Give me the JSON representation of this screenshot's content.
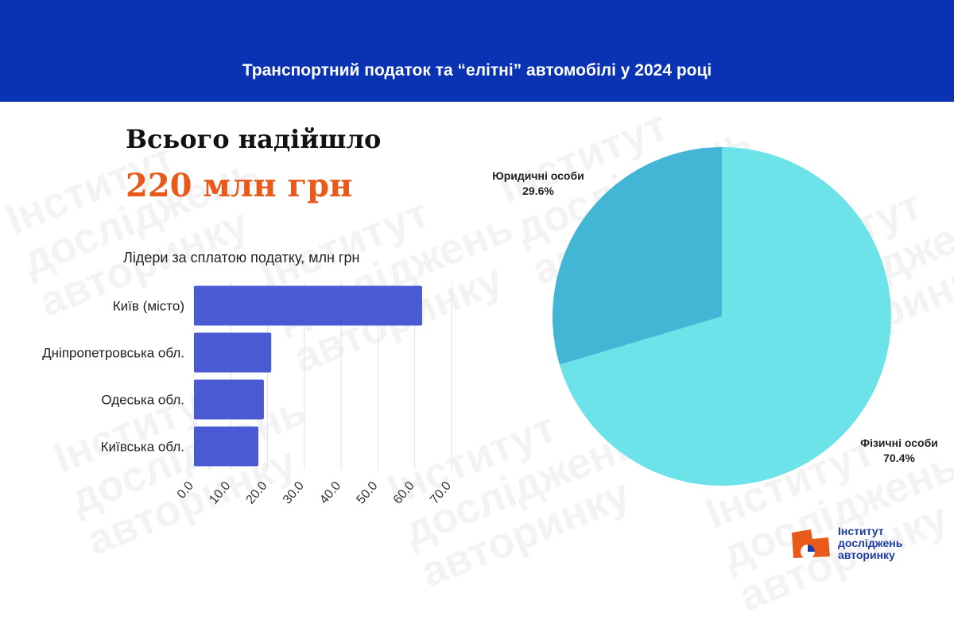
{
  "header": {
    "title": "Транспортний податок та “елітні” автомобілі у 2024 році"
  },
  "summary": {
    "label": "Всього надійшло",
    "value": "220 млн грн"
  },
  "watermark": {
    "lines": "Інститут\nдосліджень\nавторинку"
  },
  "logo": {
    "line1": "Інститут",
    "line2": "досліджень",
    "line3": "авторинку"
  },
  "colors": {
    "header": "#0a33b3",
    "bar": "#4a5ad2",
    "pie_big": "#6be3e8",
    "pie_small": "#43b6d6",
    "accent": "#e8591a"
  },
  "chart_data": [
    {
      "type": "bar",
      "orientation": "horizontal",
      "title": "Лідери за сплатою податку, млн грн",
      "categories": [
        "Київ (місто)",
        "Дніпропетровська обл.",
        "Одеська обл.",
        "Київська обл."
      ],
      "values": [
        62.0,
        21.0,
        19.0,
        17.5
      ],
      "xlim": [
        0,
        70
      ],
      "xticks": [
        "0.0",
        "10.0",
        "20.0",
        "30.0",
        "40.0",
        "50.0",
        "60.0",
        "70.0"
      ],
      "grid": true
    },
    {
      "type": "pie",
      "slices": [
        {
          "label": "Фізичні особи",
          "value": 70.4,
          "pct_label": "70.4%"
        },
        {
          "label": "Юридичні особи",
          "value": 29.6,
          "pct_label": "29.6%"
        }
      ]
    }
  ]
}
